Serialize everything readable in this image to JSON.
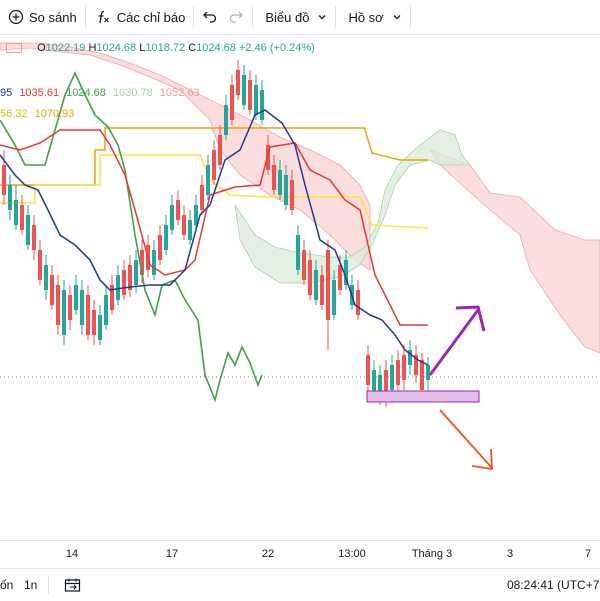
{
  "toolbar": {
    "compare_label": "So sánh",
    "indicators_label": "Các chỉ báo",
    "chart_label": "Biểu đồ",
    "profile_label": "Hồ sơ"
  },
  "legend": {
    "ohlc": {
      "open_label": "O",
      "open": "1022.19",
      "high_label": "H",
      "high": "1024.68",
      "low_label": "L",
      "low": "1018.72",
      "close_label": "C",
      "close": "1024.68",
      "change": "+2.46 (+0.24%)"
    },
    "ichimoku_row1": {
      "v0": "95",
      "v1": "1035.61",
      "v2": "1024.68",
      "v3": "1030.78",
      "v4": "1052.63"
    },
    "ichimoku_row2": {
      "v0": "56.32",
      "v1": "1070.93"
    }
  },
  "xaxis": {
    "labels": [
      "14",
      "17",
      "22",
      "13:00",
      "Tháng 3",
      "3",
      "7"
    ]
  },
  "bottom": {
    "range_left": "ốn",
    "range_1n": "1n",
    "time": "08:24:41 (UTC+7"
  },
  "colors": {
    "up": "#26a69a",
    "down": "#ef5350",
    "conversion": "#1e3a8a",
    "base": "#e53935",
    "lagging": "#43a047",
    "orange": "#f59e0b",
    "yellow": "#fde047",
    "cloud_red": "#f8d3d3",
    "cloud_green": "#d9ecd9",
    "purple": "#9c27b0",
    "red_arrow": "#f4511e"
  },
  "chart_data": {
    "type": "candlestick",
    "ylabel": "",
    "overlays": [
      "ichimoku-cloud",
      "conversion-line",
      "base-line",
      "lagging-span"
    ],
    "x": [
      "14",
      "17",
      "22",
      "13:00",
      "Tháng 3",
      "3",
      "7"
    ]
  }
}
